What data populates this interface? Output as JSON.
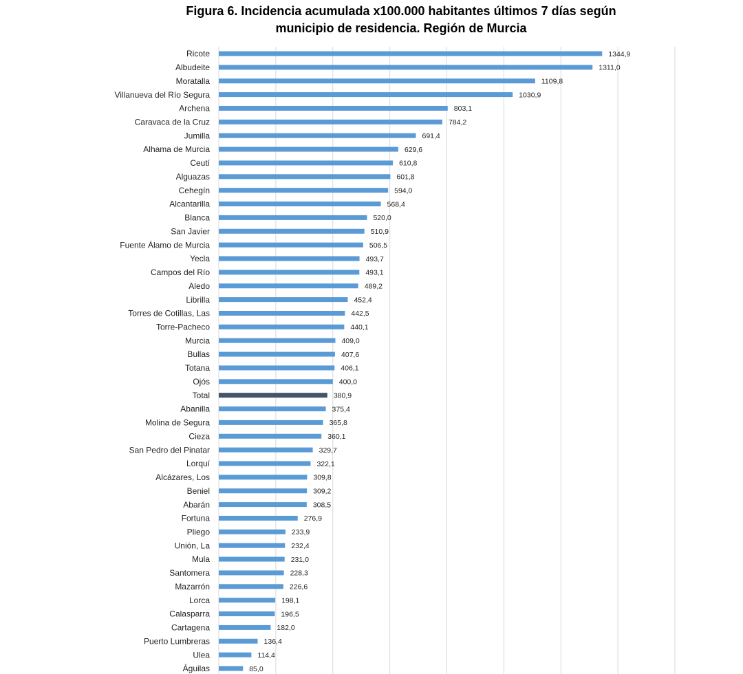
{
  "chart_data": {
    "type": "bar",
    "orientation": "horizontal",
    "title": "Figura 6. Incidencia acumulada x100.000 habitantes últimos 7 días según municipio de residencia. Región de Murcia",
    "categories": [
      "Ricote",
      "Albudeite",
      "Moratalla",
      "Villanueva del Río Segura",
      "Archena",
      "Caravaca de la Cruz",
      "Jumilla",
      "Alhama de Murcia",
      "Ceutí",
      "Alguazas",
      "Cehegín",
      "Alcantarilla",
      "Blanca",
      "San Javier",
      "Fuente Álamo de Murcia",
      "Yecla",
      "Campos del Río",
      "Aledo",
      "Librilla",
      "Torres de Cotillas, Las",
      "Torre-Pacheco",
      "Murcia",
      "Bullas",
      "Totana",
      "Ojós",
      "Total",
      "Abanilla",
      "Molina de Segura",
      "Cieza",
      "San Pedro del Pinatar",
      "Lorquí",
      "Alcázares, Los",
      "Beniel",
      "Abarán",
      "Fortuna",
      "Pliego",
      "Unión, La",
      "Mula",
      "Santomera",
      "Mazarrón",
      "Lorca",
      "Calasparra",
      "Cartagena",
      "Puerto Lumbreras",
      "Ulea",
      "Águilas"
    ],
    "values": [
      1344.9,
      1311.0,
      1109.8,
      1030.9,
      803.1,
      784.2,
      691.4,
      629.6,
      610.8,
      601.8,
      594.0,
      568.4,
      520.0,
      510.9,
      506.5,
      493.7,
      493.1,
      489.2,
      452.4,
      442.5,
      440.1,
      409.0,
      407.6,
      406.1,
      400.0,
      380.9,
      375.4,
      365.8,
      360.1,
      329.7,
      322.1,
      309.8,
      309.2,
      308.5,
      276.9,
      233.9,
      232.4,
      231.0,
      228.3,
      226.6,
      198.1,
      196.5,
      182.0,
      136.4,
      114.4,
      85.0
    ],
    "value_labels": [
      "1344,9",
      "1311,0",
      "1109,8",
      "1030,9",
      "803,1",
      "784,2",
      "691,4",
      "629,6",
      "610,8",
      "601,8",
      "594,0",
      "568,4",
      "520,0",
      "510,9",
      "506,5",
      "493,7",
      "493,1",
      "489,2",
      "452,4",
      "442,5",
      "440,1",
      "409,0",
      "407,6",
      "406,1",
      "400,0",
      "380,9",
      "375,4",
      "365,8",
      "360,1",
      "329,7",
      "322,1",
      "309,8",
      "309,2",
      "308,5",
      "276,9",
      "233,9",
      "232,4",
      "231,0",
      "228,3",
      "226,6",
      "198,1",
      "196,5",
      "182,0",
      "136,4",
      "114,4",
      "85,0"
    ],
    "colors": [
      "#5b9bd5",
      "#5b9bd5",
      "#5b9bd5",
      "#5b9bd5",
      "#5b9bd5",
      "#5b9bd5",
      "#5b9bd5",
      "#5b9bd5",
      "#5b9bd5",
      "#5b9bd5",
      "#5b9bd5",
      "#5b9bd5",
      "#5b9bd5",
      "#5b9bd5",
      "#5b9bd5",
      "#5b9bd5",
      "#5b9bd5",
      "#5b9bd5",
      "#5b9bd5",
      "#5b9bd5",
      "#5b9bd5",
      "#5b9bd5",
      "#5b9bd5",
      "#5b9bd5",
      "#5b9bd5",
      "#44546a",
      "#5b9bd5",
      "#5b9bd5",
      "#5b9bd5",
      "#5b9bd5",
      "#5b9bd5",
      "#5b9bd5",
      "#5b9bd5",
      "#5b9bd5",
      "#5b9bd5",
      "#5b9bd5",
      "#5b9bd5",
      "#5b9bd5",
      "#5b9bd5",
      "#5b9bd5",
      "#5b9bd5",
      "#5b9bd5",
      "#5b9bd5",
      "#5b9bd5",
      "#5b9bd5",
      "#5b9bd5"
    ],
    "xlim": [
      0,
      1600
    ],
    "xticks": [
      0,
      200,
      400,
      600,
      800,
      1000,
      1200,
      1400,
      1600
    ],
    "grid": true
  }
}
